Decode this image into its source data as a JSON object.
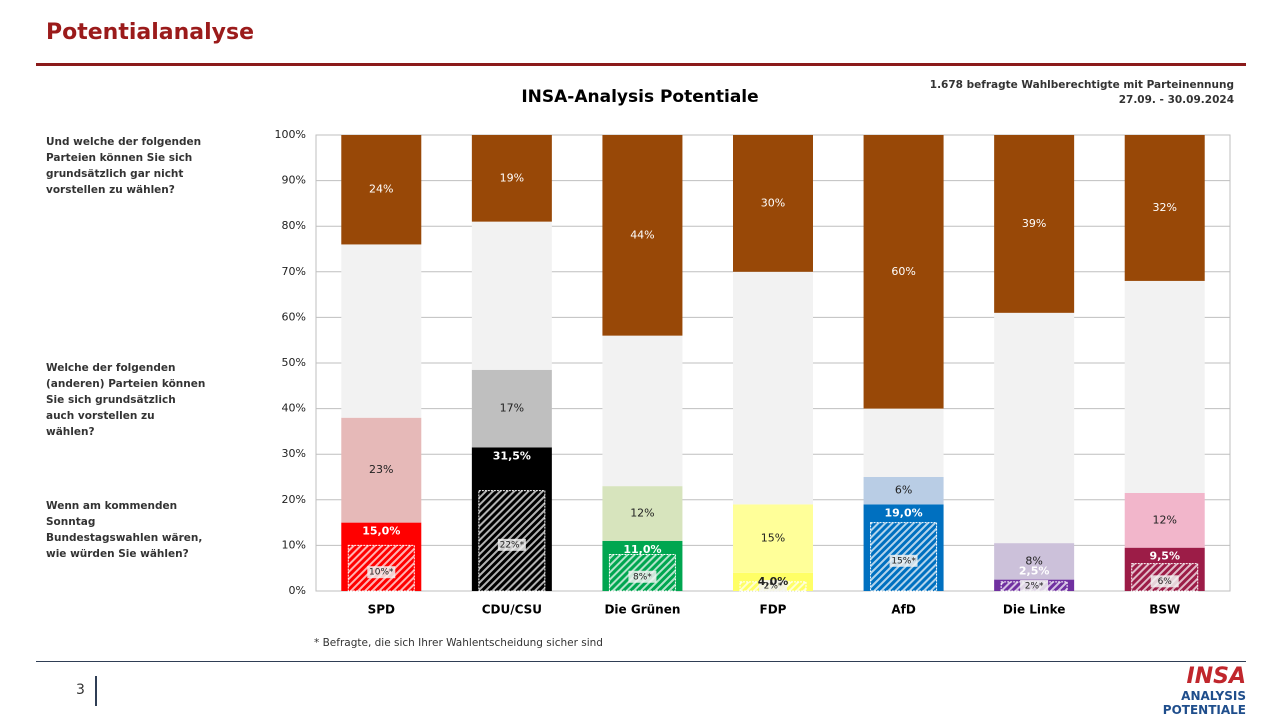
{
  "header": {
    "title": "Potentialanalyse",
    "page": "3"
  },
  "logo": {
    "brand": "INSA",
    "line1": "ANALYSIS",
    "line2": "POTENTIALE"
  },
  "chart_data": {
    "type": "stacked_bar",
    "title": "INSA-Analysis Potentiale",
    "note": [
      "1.678 befragte Wahlberechtigte mit Parteinennung",
      "27.09. - 30.09.2024"
    ],
    "footnote": "* Befragte, die sich Ihrer Wahlentscheidung sicher sind",
    "categories": [
      "SPD",
      "CDU/CSU",
      "Die Grünen",
      "FDP",
      "AfD",
      "Die Linke",
      "BSW"
    ],
    "ylim": [
      0,
      100
    ],
    "yticks": [
      {
        "value": 0,
        "label": "0%"
      },
      {
        "value": 10,
        "label": "10%"
      },
      {
        "value": 20,
        "label": "20%"
      },
      {
        "value": 30,
        "label": "30%"
      },
      {
        "value": 40,
        "label": "40%"
      },
      {
        "value": 50,
        "label": "50%"
      },
      {
        "value": 60,
        "label": "60%"
      },
      {
        "value": 70,
        "label": "70%"
      },
      {
        "value": 80,
        "label": "80%"
      },
      {
        "value": 90,
        "label": "90%"
      },
      {
        "value": 100,
        "label": "100%"
      }
    ],
    "grid": true,
    "series": [
      {
        "name": "Wenn am kommenden Sonntag Bundestagswahlen wären, wie würden Sie wählen?",
        "colors": [
          "#ff0000",
          "#000000",
          "#00a650",
          "#ffff66",
          "#0070c0",
          "#7030a0",
          "#9c1c47"
        ],
        "values": [
          15.0,
          31.5,
          11.0,
          4.0,
          19.0,
          2.5,
          9.5
        ],
        "value_labels": [
          "15,0%",
          "31,5%",
          "11,0%",
          "4,0%",
          "19,0%",
          "2,5%",
          "9,5%"
        ]
      },
      {
        "name": "Welche der folgenden (anderen) Parteien können Sie sich grundsätzlich auch vorstellen zu wählen?",
        "colors": [
          "#e6b9b8",
          "#bfbfbf",
          "#d7e4bd",
          "#ffff99",
          "#b9cde5",
          "#ccc1da",
          "#f2b6cb"
        ],
        "values": [
          23,
          17,
          12,
          15,
          6,
          8,
          12
        ],
        "value_labels": [
          "23%",
          "17%",
          "12%",
          "15%",
          "6%",
          "8%",
          "12%"
        ]
      },
      {
        "color": "#f2f2f2",
        "values": [
          38,
          32.5,
          33,
          51,
          15,
          50.5,
          46.5
        ]
      },
      {
        "name": "Und welche der folgenden Parteien können Sie sich grundsätzlich gar nicht vorstellen zu wählen?",
        "color": "#984807",
        "values": [
          24,
          19,
          44,
          30,
          60,
          39,
          32
        ],
        "value_labels": [
          "24%",
          "19%",
          "44%",
          "30%",
          "60%",
          "39%",
          "32%"
        ]
      }
    ],
    "sure": {
      "values": [
        10,
        22,
        8,
        2,
        15,
        2,
        6
      ],
      "value_labels": [
        "10%*",
        "22%*",
        "8%*",
        "2%*",
        "15%*",
        "2%*",
        "6%"
      ]
    }
  }
}
